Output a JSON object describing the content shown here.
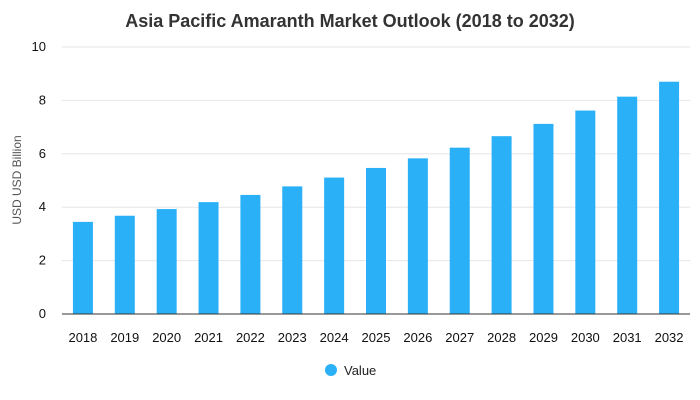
{
  "chart_data": {
    "type": "bar",
    "title": "Asia Pacific Amaranth Market Outlook (2018 to 2032)",
    "xlabel": "",
    "ylabel": "USD USD Billion",
    "categories": [
      "2018",
      "2019",
      "2020",
      "2021",
      "2022",
      "2023",
      "2024",
      "2025",
      "2026",
      "2027",
      "2028",
      "2029",
      "2030",
      "2031",
      "2032"
    ],
    "series": [
      {
        "name": "Value",
        "values": [
          3.45,
          3.68,
          3.93,
          4.19,
          4.46,
          4.78,
          5.11,
          5.47,
          5.83,
          6.23,
          6.66,
          7.12,
          7.62,
          8.14,
          8.7
        ]
      }
    ],
    "ylim": [
      0,
      10
    ],
    "yticks": [
      0,
      2,
      4,
      6,
      8,
      10
    ],
    "grid": true,
    "legend_position": "bottom",
    "colors": {
      "bar": "#2ab0f7"
    }
  }
}
